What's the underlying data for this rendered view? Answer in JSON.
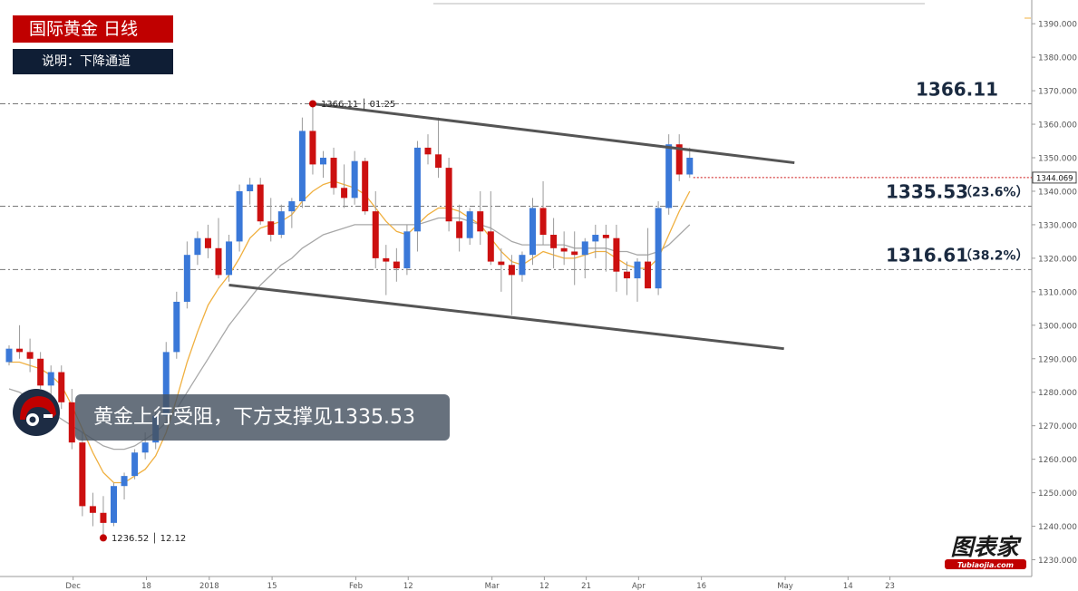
{
  "title": "国际黄金  日线",
  "note": "说明：下降通道",
  "callout": "黄金上行受阻，下方支撑见1335.53",
  "brand": {
    "name": "图表家",
    "url": "Tubiaojia.com",
    "color": "#c00000"
  },
  "colors": {
    "up": "#3a78d8",
    "down": "#cc1010",
    "ma_fast": "#f0b040",
    "ma_slow": "#a8a8a8",
    "channel": "#555555",
    "accent": "#c00000"
  },
  "chart_data": {
    "type": "candlestick",
    "ylim": [
      1225,
      1396
    ],
    "y_ticks": [
      "1230.000",
      "1240.000",
      "1250.000",
      "1260.000",
      "1270.000",
      "1280.000",
      "1290.000",
      "1300.000",
      "1310.000",
      "1320.000",
      "1330.000",
      "1340.000",
      "1350.000",
      "1360.000",
      "1370.000",
      "1380.000",
      "1390.000"
    ],
    "x_labels": [
      {
        "label": "Dec",
        "i": 3
      },
      {
        "label": "18",
        "i": 10
      },
      {
        "label": "2018",
        "i": 16
      },
      {
        "label": "15",
        "i": 22
      },
      {
        "label": "Feb",
        "i": 30
      },
      {
        "label": "12",
        "i": 35
      },
      {
        "label": "Mar",
        "i": 43
      },
      {
        "label": "12",
        "i": 48
      },
      {
        "label": "21",
        "i": 52
      },
      {
        "label": "Apr",
        "i": 57
      },
      {
        "label": "16",
        "i": 63
      },
      {
        "label": "May",
        "i": 71
      },
      {
        "label": "14",
        "i": 77
      },
      {
        "label": "23",
        "i": 81
      }
    ],
    "current_price": "1344.069",
    "candles": [
      [
        1289,
        1294,
        1288,
        1293
      ],
      [
        1293,
        1300,
        1290,
        1292
      ],
      [
        1292,
        1296,
        1286,
        1290
      ],
      [
        1290,
        1292,
        1281,
        1282
      ],
      [
        1282,
        1288,
        1279,
        1286
      ],
      [
        1286,
        1288,
        1275,
        1277
      ],
      [
        1277,
        1281,
        1263,
        1265
      ],
      [
        1265,
        1268,
        1243,
        1246
      ],
      [
        1246,
        1250,
        1240,
        1244
      ],
      [
        1244,
        1249,
        1236.52,
        1241
      ],
      [
        1241,
        1253,
        1240,
        1252
      ],
      [
        1252,
        1256,
        1248,
        1255
      ],
      [
        1255,
        1263,
        1254,
        1262
      ],
      [
        1262,
        1268,
        1260,
        1265
      ],
      [
        1265,
        1275,
        1263,
        1273
      ],
      [
        1273,
        1295,
        1271,
        1292
      ],
      [
        1292,
        1310,
        1290,
        1307
      ],
      [
        1307,
        1325,
        1305,
        1321
      ],
      [
        1321,
        1328,
        1318,
        1326
      ],
      [
        1326,
        1330,
        1320,
        1323
      ],
      [
        1323,
        1332,
        1314,
        1315
      ],
      [
        1315,
        1327,
        1313,
        1325
      ],
      [
        1325,
        1342,
        1322,
        1340
      ],
      [
        1340,
        1344,
        1336,
        1342
      ],
      [
        1342,
        1344,
        1330,
        1331
      ],
      [
        1331,
        1338,
        1325,
        1327
      ],
      [
        1327,
        1336,
        1326,
        1334
      ],
      [
        1334,
        1338,
        1329,
        1337
      ],
      [
        1337,
        1362,
        1335,
        1358
      ],
      [
        1358,
        1366.11,
        1345,
        1348
      ],
      [
        1348,
        1352,
        1344,
        1350
      ],
      [
        1350,
        1353,
        1339,
        1341
      ],
      [
        1341,
        1348,
        1335,
        1338
      ],
      [
        1338,
        1352,
        1336,
        1349
      ],
      [
        1349,
        1350,
        1333,
        1334
      ],
      [
        1334,
        1340,
        1317,
        1320
      ],
      [
        1320,
        1324,
        1309,
        1319
      ],
      [
        1319,
        1323,
        1313,
        1317
      ],
      [
        1317,
        1330,
        1315,
        1328
      ],
      [
        1328,
        1355,
        1322,
        1353
      ],
      [
        1353,
        1357,
        1348,
        1351
      ],
      [
        1351,
        1362,
        1344,
        1347
      ],
      [
        1347,
        1350,
        1328,
        1331
      ],
      [
        1331,
        1336,
        1322,
        1326
      ],
      [
        1326,
        1335,
        1324,
        1334
      ],
      [
        1334,
        1340,
        1324,
        1328
      ],
      [
        1328,
        1340,
        1318,
        1319
      ],
      [
        1319,
        1323,
        1310,
        1318
      ],
      [
        1318,
        1321,
        1303,
        1315
      ],
      [
        1315,
        1322,
        1313,
        1321
      ],
      [
        1321,
        1338,
        1318,
        1335
      ],
      [
        1335,
        1343,
        1324,
        1327
      ],
      [
        1327,
        1332,
        1317,
        1323
      ],
      [
        1323,
        1328,
        1318,
        1322
      ],
      [
        1322,
        1328,
        1312,
        1321
      ],
      [
        1321,
        1326,
        1314,
        1325
      ],
      [
        1325,
        1330,
        1320,
        1327
      ],
      [
        1327,
        1330,
        1316,
        1326
      ],
      [
        1326,
        1330,
        1310,
        1316
      ],
      [
        1316,
        1319,
        1309,
        1314
      ],
      [
        1314,
        1320,
        1307,
        1319
      ],
      [
        1319,
        1329,
        1312,
        1311
      ],
      [
        1311,
        1337,
        1309,
        1335
      ],
      [
        1335,
        1357,
        1333,
        1354
      ],
      [
        1354,
        1357,
        1343,
        1345
      ],
      [
        1345,
        1353,
        1344,
        1350
      ]
    ],
    "ma_fast": [
      1289,
      1289,
      1288,
      1287,
      1285,
      1282,
      1276,
      1269,
      1262,
      1256,
      1253,
      1253,
      1255,
      1257,
      1261,
      1268,
      1278,
      1289,
      1298,
      1306,
      1311,
      1315,
      1320,
      1326,
      1329,
      1330,
      1331,
      1333,
      1337,
      1340,
      1342,
      1343,
      1342,
      1341,
      1339,
      1335,
      1331,
      1328,
      1327,
      1330,
      1333,
      1335,
      1335,
      1334,
      1332,
      1330,
      1326,
      1322,
      1319,
      1318,
      1320,
      1322,
      1321,
      1320,
      1320,
      1321,
      1322,
      1322,
      1320,
      1318,
      1317,
      1317,
      1320,
      1327,
      1334,
      1340
    ],
    "ma_slow": [
      1281,
      1280,
      1278,
      1276,
      1274,
      1272,
      1270,
      1268,
      1266,
      1264,
      1263,
      1263,
      1264,
      1266,
      1268,
      1271,
      1275,
      1280,
      1285,
      1290,
      1295,
      1300,
      1304,
      1308,
      1312,
      1315,
      1318,
      1320,
      1323,
      1325,
      1327,
      1328,
      1329,
      1330,
      1330,
      1330,
      1330,
      1330,
      1330,
      1330,
      1331,
      1332,
      1332,
      1332,
      1331,
      1330,
      1329,
      1327,
      1325,
      1324,
      1324,
      1324,
      1324,
      1324,
      1323,
      1323,
      1323,
      1323,
      1322,
      1322,
      1321,
      1321,
      1322,
      1324,
      1327,
      1330
    ],
    "levels": [
      {
        "value": 1366.11,
        "label": "1366.11",
        "pct": ""
      },
      {
        "value": 1335.53,
        "label": "1335.53",
        "pct": "（23.6%）"
      },
      {
        "value": 1316.61,
        "label": "1316.61",
        "pct": "（38.2%）"
      }
    ],
    "markers": [
      {
        "i": 29,
        "price": 1366.11,
        "text": "1366.11 │ 01.25"
      },
      {
        "i": 9,
        "price": 1236.52,
        "text": "1236.52 │ 12.12"
      }
    ],
    "channel_upper": [
      [
        29,
        1366.11
      ],
      [
        75,
        1348.5
      ]
    ],
    "channel_lower": [
      [
        21,
        1312
      ],
      [
        74,
        1293
      ]
    ]
  }
}
